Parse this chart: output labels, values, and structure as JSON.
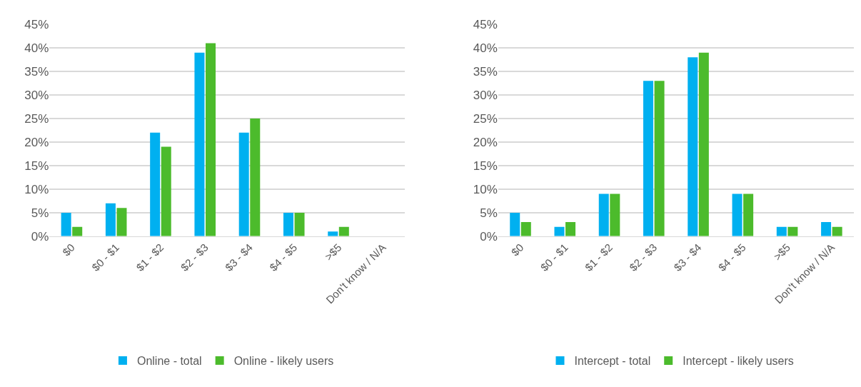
{
  "chart_data": [
    {
      "type": "bar",
      "categories": [
        "$0",
        "$0 - $1",
        "$1 - $2",
        "$2 - $3",
        "$3 - $4",
        "$4 - $5",
        ">$5",
        "Don't know / N/A"
      ],
      "series": [
        {
          "name": "Online - total",
          "color": "#00b0f0",
          "values": [
            5,
            7,
            22,
            39,
            22,
            5,
            1,
            0
          ]
        },
        {
          "name": "Online - likely users",
          "color": "#4cbb2c",
          "values": [
            2,
            6,
            19,
            41,
            25,
            5,
            2,
            0
          ]
        }
      ],
      "ylim": [
        0,
        45
      ],
      "yticks": [
        {
          "value": 0,
          "label": "0%"
        },
        {
          "value": 5,
          "label": "5%"
        },
        {
          "value": 10,
          "label": "10%"
        },
        {
          "value": 15,
          "label": "15%"
        },
        {
          "value": 20,
          "label": "20%"
        },
        {
          "value": 25,
          "label": "25%"
        },
        {
          "value": 30,
          "label": "30%"
        },
        {
          "value": 35,
          "label": "35%"
        },
        {
          "value": 40,
          "label": "40%"
        },
        {
          "value": 45,
          "label": "45%"
        }
      ],
      "grid": "y",
      "legend": "bottom"
    },
    {
      "type": "bar",
      "categories": [
        "$0",
        "$0 - $1",
        "$1 - $2",
        "$2 - $3",
        "$3 - $4",
        "$4 - $5",
        ">$5",
        "Don't know / N/A"
      ],
      "series": [
        {
          "name": "Intercept - total",
          "color": "#00b0f0",
          "values": [
            5,
            2,
            9,
            33,
            38,
            9,
            2,
            3
          ]
        },
        {
          "name": "Intercept - likely users",
          "color": "#4cbb2c",
          "values": [
            3,
            3,
            9,
            33,
            39,
            9,
            2,
            2
          ]
        }
      ],
      "ylim": [
        0,
        45
      ],
      "yticks": [
        {
          "value": 0,
          "label": "0%"
        },
        {
          "value": 5,
          "label": "5%"
        },
        {
          "value": 10,
          "label": "10%"
        },
        {
          "value": 15,
          "label": "15%"
        },
        {
          "value": 20,
          "label": "20%"
        },
        {
          "value": 25,
          "label": "25%"
        },
        {
          "value": 30,
          "label": "30%"
        },
        {
          "value": 35,
          "label": "35%"
        },
        {
          "value": 40,
          "label": "40%"
        },
        {
          "value": 45,
          "label": "45%"
        }
      ],
      "grid": "y",
      "legend": "bottom"
    }
  ]
}
